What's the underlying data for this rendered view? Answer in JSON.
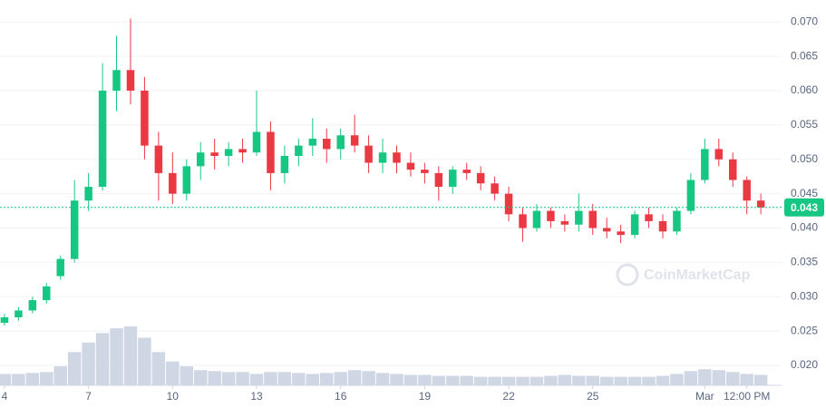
{
  "chart_data": {
    "type": "candlestick",
    "x": [
      4,
      4.5,
      5,
      5.5,
      6,
      6.5,
      7,
      7.5,
      8,
      8.5,
      9,
      9.5,
      10,
      10.5,
      11,
      11.5,
      12,
      12.5,
      13,
      13.5,
      14,
      14.5,
      15,
      15.5,
      16,
      16.5,
      17,
      17.5,
      18,
      18.5,
      19,
      19.5,
      20,
      20.5,
      21,
      21.5,
      22,
      22.5,
      23,
      23.5,
      24,
      24.5,
      25,
      25.5,
      26,
      26.5,
      27,
      27.5,
      28,
      28.5,
      29,
      29.5,
      30,
      30.5,
      31
    ],
    "open": [
      0.0262,
      0.027,
      0.028,
      0.0295,
      0.033,
      0.0355,
      0.044,
      0.046,
      0.06,
      0.063,
      0.06,
      0.052,
      0.048,
      0.045,
      0.049,
      0.051,
      0.0505,
      0.0515,
      0.051,
      0.054,
      0.048,
      0.0505,
      0.052,
      0.053,
      0.0515,
      0.0535,
      0.052,
      0.0495,
      0.051,
      0.0495,
      0.0485,
      0.048,
      0.046,
      0.0485,
      0.048,
      0.0465,
      0.045,
      0.042,
      0.04,
      0.0425,
      0.041,
      0.0405,
      0.0425,
      0.04,
      0.0395,
      0.039,
      0.042,
      0.041,
      0.0395,
      0.0425,
      0.047,
      0.0515,
      0.05,
      0.047,
      0.044
    ],
    "high": [
      0.0275,
      0.0285,
      0.03,
      0.032,
      0.036,
      0.047,
      0.048,
      0.064,
      0.068,
      0.0705,
      0.062,
      0.054,
      0.051,
      0.05,
      0.0525,
      0.053,
      0.0525,
      0.053,
      0.06,
      0.0555,
      0.052,
      0.053,
      0.056,
      0.0545,
      0.0545,
      0.0565,
      0.0535,
      0.053,
      0.052,
      0.051,
      0.0495,
      0.049,
      0.049,
      0.0495,
      0.049,
      0.0475,
      0.046,
      0.043,
      0.0435,
      0.043,
      0.042,
      0.045,
      0.0435,
      0.0415,
      0.0405,
      0.0425,
      0.043,
      0.042,
      0.043,
      0.048,
      0.053,
      0.053,
      0.051,
      0.0475,
      0.045
    ],
    "low": [
      0.0258,
      0.0265,
      0.0276,
      0.029,
      0.0325,
      0.035,
      0.0425,
      0.0455,
      0.057,
      0.058,
      0.05,
      0.044,
      0.0435,
      0.044,
      0.047,
      0.0485,
      0.049,
      0.0495,
      0.0505,
      0.0455,
      0.0465,
      0.049,
      0.0505,
      0.0495,
      0.05,
      0.051,
      0.048,
      0.048,
      0.048,
      0.0475,
      0.0465,
      0.044,
      0.045,
      0.047,
      0.0455,
      0.044,
      0.041,
      0.038,
      0.0395,
      0.04,
      0.0395,
      0.0395,
      0.039,
      0.0385,
      0.0378,
      0.0385,
      0.04,
      0.0385,
      0.039,
      0.042,
      0.0465,
      0.049,
      0.046,
      0.042,
      0.042
    ],
    "close": [
      0.027,
      0.028,
      0.0295,
      0.0315,
      0.0355,
      0.044,
      0.046,
      0.06,
      0.063,
      0.06,
      0.052,
      0.048,
      0.045,
      0.049,
      0.051,
      0.0505,
      0.0515,
      0.051,
      0.054,
      0.048,
      0.0505,
      0.052,
      0.053,
      0.0515,
      0.0535,
      0.052,
      0.0495,
      0.051,
      0.0495,
      0.0485,
      0.048,
      0.046,
      0.0485,
      0.048,
      0.0465,
      0.045,
      0.042,
      0.04,
      0.0425,
      0.041,
      0.0405,
      0.0425,
      0.04,
      0.0395,
      0.039,
      0.042,
      0.041,
      0.0395,
      0.0425,
      0.047,
      0.0515,
      0.05,
      0.047,
      0.044,
      0.043
    ],
    "volume": [
      12,
      12,
      13,
      14,
      20,
      35,
      45,
      55,
      60,
      62,
      50,
      35,
      25,
      20,
      16,
      15,
      14,
      14,
      12,
      14,
      14,
      13,
      12,
      13,
      14,
      16,
      15,
      13,
      12,
      11,
      11,
      10,
      10,
      10,
      9,
      9,
      9,
      9,
      9,
      10,
      11,
      10,
      10,
      9,
      9,
      9,
      9,
      10,
      12,
      15,
      17,
      16,
      14,
      12,
      11
    ],
    "up_color": "#16c784",
    "down_color": "#ea3943",
    "volume_color": "#cfd6e4",
    "xlim": [
      3.84,
      31.74
    ],
    "xticks": [
      4,
      7,
      10,
      13,
      16,
      19,
      22,
      25,
      {
        "value": 29,
        "label": "Mar"
      },
      {
        "value": 30.5,
        "label": "12:00 PM"
      }
    ],
    "ylim": [
      0.0171,
      0.0732
    ],
    "yticks": [
      {
        "value": 0.02,
        "label": "0.020"
      },
      0.025,
      {
        "value": 0.03,
        "label": "0.030"
      },
      0.035,
      {
        "value": 0.04,
        "label": "0.040"
      },
      0.045,
      {
        "value": 0.05,
        "label": "0.050"
      },
      0.055,
      {
        "value": 0.06,
        "label": "0.060"
      },
      0.065,
      {
        "value": 0.07,
        "label": "0.070"
      }
    ],
    "grid": true,
    "current_price": 0.043,
    "watermark": "CoinMarketCap"
  }
}
